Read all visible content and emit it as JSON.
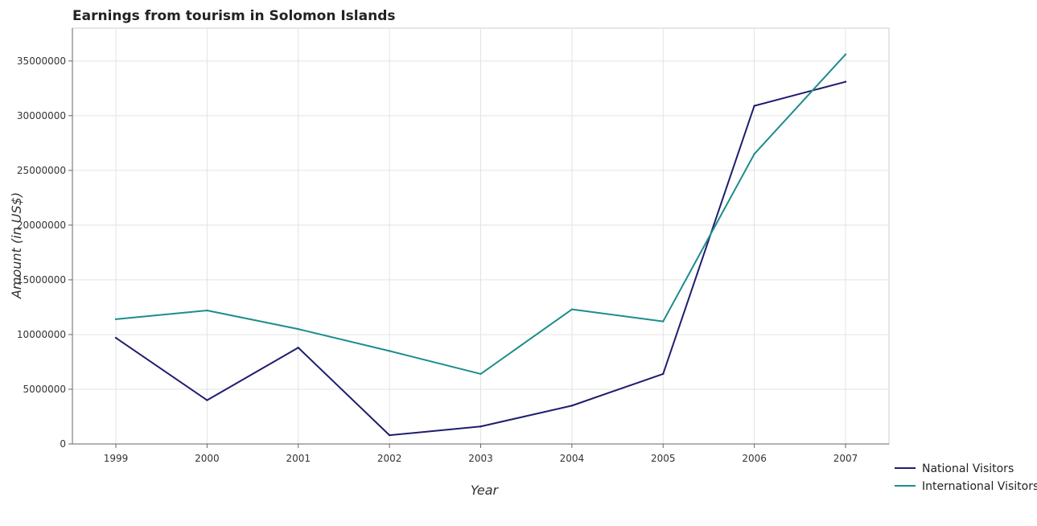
{
  "chart_data": {
    "type": "line",
    "title": "Earnings from tourism in Solomon Islands",
    "xlabel": "Year",
    "ylabel": "Amount (in US$)",
    "categories": [
      "1999",
      "2000",
      "2001",
      "2002",
      "2003",
      "2004",
      "2005",
      "2006",
      "2007"
    ],
    "series": [
      {
        "name": "National Visitors",
        "color": "#1f1c6e",
        "values": [
          9700000,
          4000000,
          8800000,
          800000,
          1600000,
          3500000,
          6400000,
          30900000,
          33100000
        ]
      },
      {
        "name": "International Visitors",
        "color": "#1f8c8c",
        "values": [
          11400000,
          12200000,
          10500000,
          8500000,
          6400000,
          12300000,
          11200000,
          26500000,
          35600000
        ]
      }
    ],
    "y_ticks": [
      0,
      5000000,
      10000000,
      15000000,
      20000000,
      25000000,
      30000000,
      35000000
    ],
    "y_tick_labels": [
      "0",
      "5000000",
      "10000000",
      "15000000",
      "20000000",
      "25000000",
      "30000000",
      "35000000"
    ],
    "ylim": [
      0,
      38000000
    ],
    "grid": true,
    "legend_position": "bottom-right"
  }
}
